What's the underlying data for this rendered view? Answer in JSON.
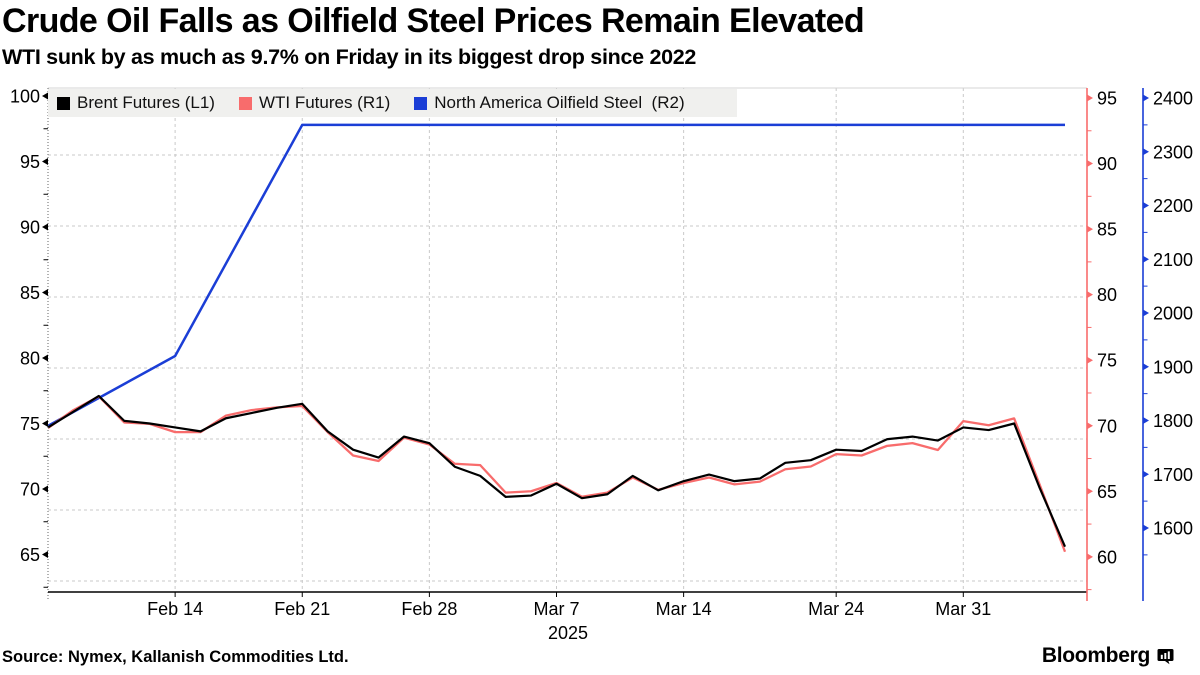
{
  "header": {
    "title": "Crude Oil Falls as Oilfield Steel Prices Remain Elevated",
    "subtitle": "WTI sunk by as much as 9.7% on Friday in its biggest drop since 2022"
  },
  "legend": [
    {
      "label": "Brent Futures (L1)",
      "color": "#000000",
      "icon": "brent-swatch-icon"
    },
    {
      "label": "WTI Futures (R1)",
      "color": "#f86c6c",
      "icon": "wti-swatch-icon"
    },
    {
      "label": "North America Oilfield Steel  (R2)",
      "color": "#1b3ed6",
      "icon": "steel-swatch-icon"
    }
  ],
  "footer": {
    "source": "Source: Nymex, Kallanish Commodities Ltd.",
    "brand": "Bloomberg"
  },
  "chart_data": {
    "type": "line",
    "x": [
      "Feb 7",
      "Feb 10",
      "Feb 11",
      "Feb 12",
      "Feb 13",
      "Feb 14",
      "Feb 17",
      "Feb 18",
      "Feb 19",
      "Feb 20",
      "Feb 21",
      "Feb 24",
      "Feb 25",
      "Feb 26",
      "Feb 27",
      "Feb 28",
      "Mar 3",
      "Mar 4",
      "Mar 5",
      "Mar 6",
      "Mar 7",
      "Mar 10",
      "Mar 11",
      "Mar 12",
      "Mar 13",
      "Mar 14",
      "Mar 17",
      "Mar 18",
      "Mar 19",
      "Mar 20",
      "Mar 21",
      "Mar 24",
      "Mar 25",
      "Mar 26",
      "Mar 27",
      "Mar 28",
      "Mar 31",
      "Apr 1",
      "Apr 2",
      "Apr 3",
      "Apr 4"
    ],
    "x_ticks": [
      {
        "index": 5,
        "label": "Feb 14"
      },
      {
        "index": 10,
        "label": "Feb 21"
      },
      {
        "index": 15,
        "label": "Feb 28"
      },
      {
        "index": 20,
        "label": "Mar 7"
      },
      {
        "index": 25,
        "label": "Mar 14"
      },
      {
        "index": 31,
        "label": "Mar 24"
      },
      {
        "index": 36,
        "label": "Mar 31"
      }
    ],
    "x_year_label": "2025",
    "grid": true,
    "legend_position": "top",
    "series": [
      {
        "name": "Brent Futures (L1)",
        "axis": "L1",
        "color": "#000000",
        "values": [
          74.7,
          75.9,
          77.1,
          75.2,
          75.0,
          74.7,
          74.4,
          75.4,
          75.8,
          76.2,
          76.5,
          74.4,
          73.0,
          72.4,
          74.0,
          73.5,
          71.7,
          71.0,
          69.4,
          69.5,
          70.4,
          69.3,
          69.6,
          71.0,
          69.9,
          70.6,
          71.1,
          70.6,
          70.8,
          72.0,
          72.2,
          73.0,
          72.9,
          73.8,
          74.0,
          73.7,
          74.7,
          74.5,
          75.0,
          70.1,
          65.6
        ]
      },
      {
        "name": "WTI Futures (R1)",
        "axis": "R1",
        "color": "#f86c6c",
        "values": [
          71.0,
          72.3,
          73.3,
          71.4,
          71.3,
          70.7,
          70.7,
          71.9,
          72.3,
          72.5,
          72.6,
          70.7,
          69.0,
          68.6,
          70.3,
          69.8,
          68.4,
          68.3,
          66.3,
          66.4,
          67.0,
          66.0,
          66.3,
          67.4,
          66.5,
          67.0,
          67.4,
          66.9,
          67.1,
          68.0,
          68.2,
          69.1,
          69.0,
          69.7,
          69.9,
          69.4,
          71.5,
          71.2,
          71.7,
          66.9,
          62.0
        ]
      },
      {
        "name": "North America Oilfield Steel (R2)",
        "axis": "R2",
        "color": "#1b3ed6",
        "keyframes": [
          {
            "date": "Feb 7",
            "value": 1790
          },
          {
            "date": "Feb 14",
            "value": 1920
          },
          {
            "date": "Feb 21",
            "value": 2350
          },
          {
            "date": "Apr 4",
            "value": 2350
          }
        ]
      }
    ],
    "axes": {
      "L1": {
        "side": "left",
        "color": "#000000",
        "ticks": [
          100,
          95,
          90,
          85,
          80,
          75,
          70,
          65
        ],
        "range": [
          62.1,
          100.6
        ]
      },
      "R1": {
        "side": "right",
        "color": "#f86c6c",
        "ticks": [
          95,
          90,
          85,
          80,
          75,
          70,
          65,
          60
        ],
        "range": [
          57.3,
          95.8
        ]
      },
      "R2": {
        "side": "right-outer",
        "color": "#1b3ed6",
        "ticks": [
          2400,
          2300,
          2200,
          2100,
          2000,
          1900,
          1800,
          1700,
          1600
        ],
        "range": [
          1481,
          2419
        ]
      }
    }
  }
}
